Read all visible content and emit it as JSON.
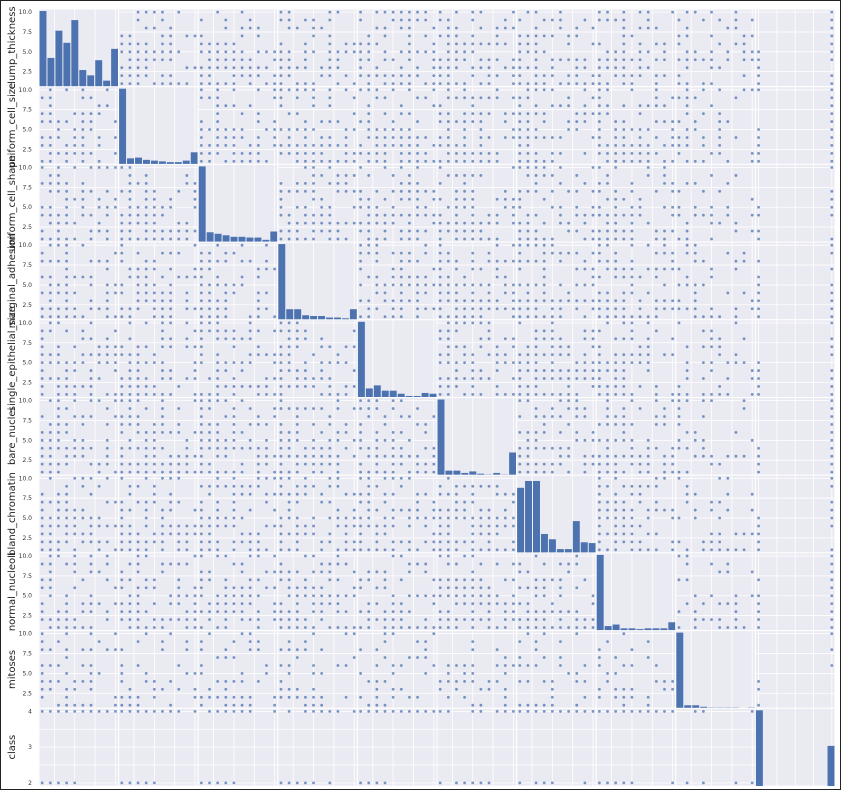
{
  "chart_data": {
    "type": "scatter_matrix",
    "variables": [
      "clump_thickness",
      "uniform_cell_size",
      "uniform_cell_shape",
      "marginal_adhesion",
      "single_epithelial_size",
      "bare_nuclei",
      "bland_chromatin",
      "normal_nucleoli",
      "mitoses",
      "class"
    ],
    "axis_labels": [
      "clump_thickness",
      "uniform_cell_size",
      "uniform_cell_shape",
      "marginal_adhesion",
      "single_epithelial_size",
      "bare_nuclei",
      "bland_chromatin",
      "normal_nucleoli",
      "mitoses",
      "class"
    ],
    "feature_range": [
      1,
      10
    ],
    "feature_ticks": [
      "10.0",
      "7.5",
      "5.0",
      "2.5"
    ],
    "class_ticks": [
      "4",
      "3",
      "2"
    ],
    "class_range": [
      2,
      4
    ],
    "diagonal": "histogram",
    "hist_bins": 10,
    "histograms": {
      "clump_thickness": [
        1.0,
        0.38,
        0.74,
        0.58,
        0.88,
        0.22,
        0.15,
        0.35,
        0.08,
        0.5
      ],
      "uniform_cell_size": [
        1.0,
        0.08,
        0.09,
        0.06,
        0.05,
        0.04,
        0.03,
        0.03,
        0.05,
        0.16
      ],
      "uniform_cell_shape": [
        1.0,
        0.13,
        0.11,
        0.09,
        0.07,
        0.07,
        0.06,
        0.06,
        0.03,
        0.14
      ],
      "marginal_adhesion": [
        1.0,
        0.14,
        0.14,
        0.06,
        0.05,
        0.05,
        0.03,
        0.03,
        0.02,
        0.14
      ],
      "single_epithelial_size": [
        1.0,
        0.12,
        0.16,
        0.09,
        0.09,
        0.05,
        0.02,
        0.02,
        0.06,
        0.05
      ],
      "bare_nuclei": [
        1.0,
        0.06,
        0.06,
        0.03,
        0.05,
        0.02,
        0.01,
        0.03,
        0.01,
        0.3
      ],
      "bland_chromatin": [
        0.86,
        0.95,
        0.95,
        0.25,
        0.18,
        0.05,
        0.05,
        0.42,
        0.14,
        0.13
      ],
      "normal_nucleoli": [
        1.0,
        0.06,
        0.08,
        0.03,
        0.03,
        0.02,
        0.03,
        0.03,
        0.03,
        0.11
      ],
      "mitoses": [
        1.0,
        0.04,
        0.04,
        0.02,
        0.01,
        0.01,
        0.01,
        0.01,
        0.0,
        0.01
      ],
      "class": [
        1.0,
        0.0,
        0.0,
        0.0,
        0.0,
        0.0,
        0.0,
        0.0,
        0.0,
        0.53
      ]
    },
    "grid": true,
    "colors": {
      "points": "#4c72b0",
      "bars": "#4c72b0",
      "panel_bg": "#eaeaf2",
      "grid": "#ffffff",
      "tick_text": "#333333"
    }
  }
}
